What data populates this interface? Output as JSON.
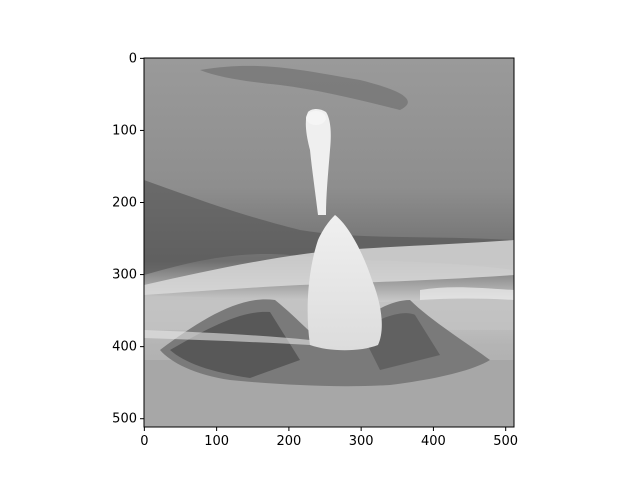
{
  "chart_data": {
    "type": "image",
    "title": "",
    "xlabel": "",
    "ylabel": "",
    "xlim": [
      0,
      511
    ],
    "ylim": [
      511,
      0
    ],
    "image_shape": [
      512,
      512
    ],
    "colormap": "gray",
    "x_ticks": [
      0,
      100,
      200,
      300,
      400,
      500
    ],
    "y_ticks": [
      0,
      100,
      200,
      300,
      400,
      500
    ],
    "x_tick_labels": [
      "0",
      "100",
      "200",
      "300",
      "400",
      "500"
    ],
    "y_tick_labels": [
      "0",
      "100",
      "200",
      "300",
      "400",
      "500"
    ],
    "grid": false,
    "image_content": "grayscale inverted-look image"
  }
}
